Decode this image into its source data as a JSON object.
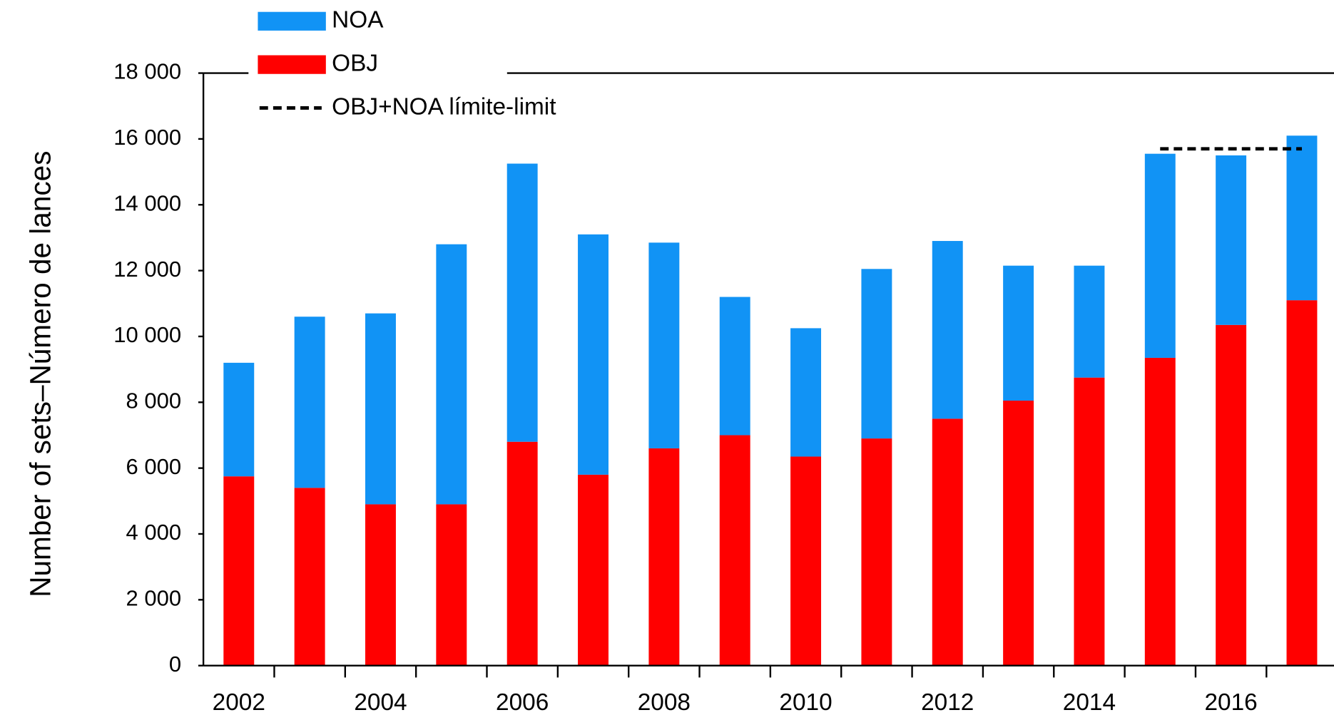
{
  "chart_data": {
    "type": "bar",
    "y_label": "Number of sets–Número de lances",
    "categories": [
      "2002",
      null,
      "2004",
      null,
      "2006",
      null,
      "2008",
      null,
      "2010",
      null,
      "2012",
      null,
      "2014",
      null,
      "2016",
      null
    ],
    "stacked": true,
    "series": [
      {
        "name": "OBJ",
        "color": "#ff0000",
        "values": [
          5750,
          5400,
          4900,
          4900,
          6800,
          5800,
          6600,
          7000,
          6350,
          6900,
          7500,
          8050,
          8750,
          9350,
          10350,
          11100
        ]
      },
      {
        "name": "NOA",
        "color": "#1193f5",
        "values": [
          3450,
          5200,
          5800,
          7900,
          8450,
          7300,
          6250,
          4200,
          3900,
          5150,
          5400,
          4100,
          3400,
          6200,
          5150,
          5000
        ]
      },
      {
        "name": "OBJ+NOA límite-limit",
        "type": "line",
        "color": "#000000",
        "dashed": true,
        "values": [
          null,
          null,
          null,
          null,
          null,
          null,
          null,
          null,
          null,
          null,
          null,
          null,
          null,
          15700,
          15700,
          15700
        ]
      }
    ],
    "ylim": [
      0,
      18000
    ],
    "yticks": [
      0,
      {
        "value": 2000,
        "label": "2 000"
      },
      {
        "value": 4000,
        "label": "4 000"
      },
      {
        "value": 6000,
        "label": "6 000"
      },
      {
        "value": 8000,
        "label": "8 000"
      },
      {
        "value": 10000,
        "label": "10 000"
      },
      {
        "value": 12000,
        "label": "12 000"
      },
      {
        "value": 14000,
        "label": "14 000"
      },
      {
        "value": 16000,
        "label": "16 000"
      },
      {
        "value": 18000,
        "label": "18 000"
      }
    ],
    "grid": false,
    "legend": "top-left"
  }
}
